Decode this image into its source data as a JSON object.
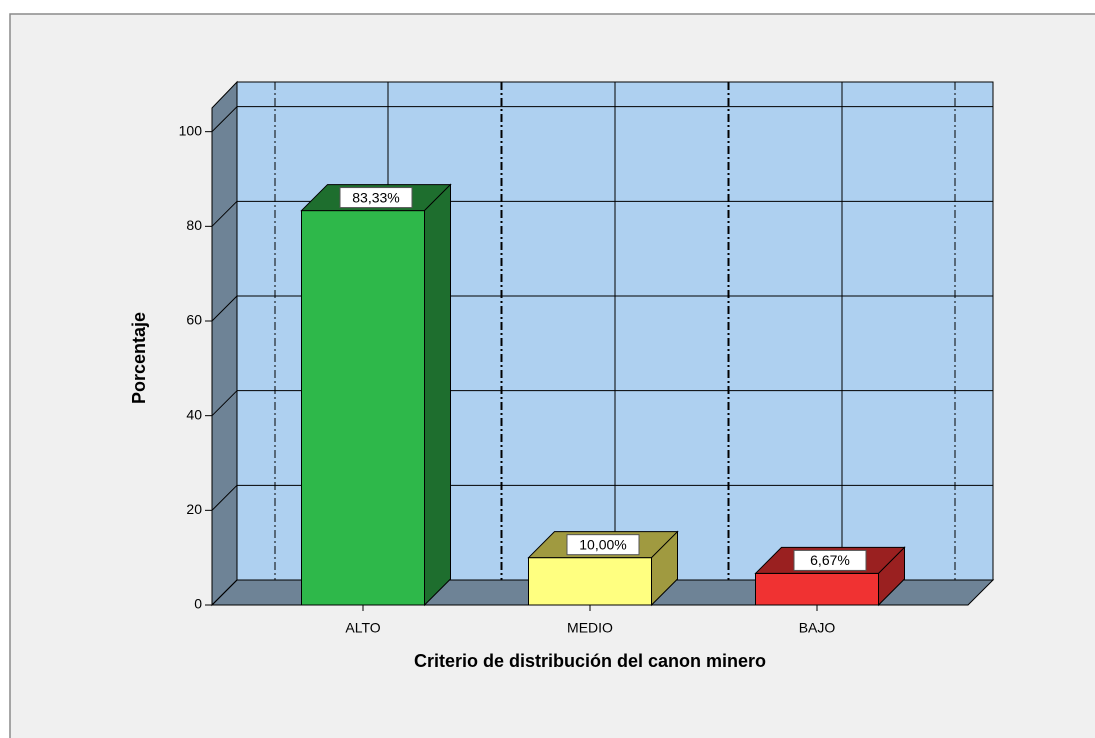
{
  "chart_data": {
    "type": "bar3d",
    "x_label": "Criterio de distribución del canon minero",
    "y_label": "Porcentaje",
    "categories": [
      "ALTO",
      "MEDIO",
      "BAJO"
    ],
    "values": [
      83.33,
      10.0,
      6.67
    ],
    "value_labels": [
      "83,33%",
      "10,00%",
      "6,67%"
    ],
    "colors": [
      "#2eb84a",
      "#ffff80",
      "#f03232"
    ],
    "side_colors": [
      "#1e6e2e",
      "#a09a40",
      "#9a2020"
    ],
    "ylim": [
      0,
      105
    ],
    "yticks": [
      0,
      20,
      40,
      60,
      80,
      100
    ],
    "grid": true
  }
}
